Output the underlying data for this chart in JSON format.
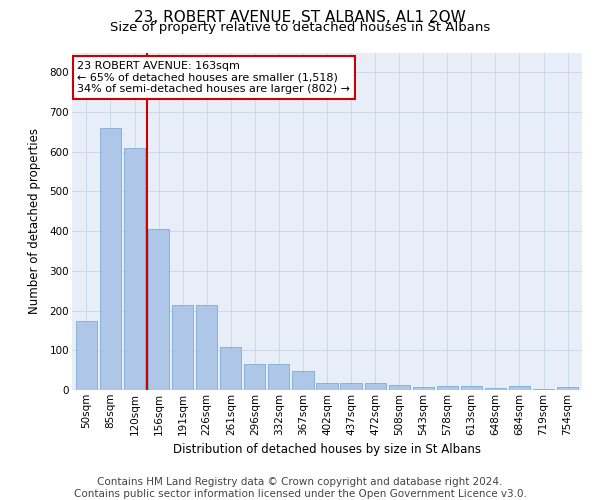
{
  "title": "23, ROBERT AVENUE, ST ALBANS, AL1 2QW",
  "subtitle": "Size of property relative to detached houses in St Albans",
  "xlabel": "Distribution of detached houses by size in St Albans",
  "ylabel": "Number of detached properties",
  "categories": [
    "50sqm",
    "85sqm",
    "120sqm",
    "156sqm",
    "191sqm",
    "226sqm",
    "261sqm",
    "296sqm",
    "332sqm",
    "367sqm",
    "402sqm",
    "437sqm",
    "472sqm",
    "508sqm",
    "543sqm",
    "578sqm",
    "613sqm",
    "648sqm",
    "684sqm",
    "719sqm",
    "754sqm"
  ],
  "values": [
    175,
    660,
    610,
    405,
    215,
    215,
    108,
    65,
    65,
    48,
    18,
    17,
    17,
    12,
    8,
    9,
    9,
    4,
    9,
    2,
    7
  ],
  "bar_color": "#aec6e8",
  "bar_edge_color": "#7aadd4",
  "vline_color": "#cc0000",
  "vline_x_index": 2.5,
  "annotation_text": "23 ROBERT AVENUE: 163sqm\n← 65% of detached houses are smaller (1,518)\n34% of semi-detached houses are larger (802) →",
  "annotation_box_facecolor": "#ffffff",
  "annotation_box_edgecolor": "#cc0000",
  "ylim": [
    0,
    850
  ],
  "yticks": [
    0,
    100,
    200,
    300,
    400,
    500,
    600,
    700,
    800
  ],
  "grid_color": "#c8d4e8",
  "background_color": "#e8eef8",
  "footer_line1": "Contains HM Land Registry data © Crown copyright and database right 2024.",
  "footer_line2": "Contains public sector information licensed under the Open Government Licence v3.0.",
  "title_fontsize": 11,
  "subtitle_fontsize": 9.5,
  "axis_label_fontsize": 8.5,
  "tick_fontsize": 7.5,
  "footer_fontsize": 7.5,
  "annotation_fontsize": 8
}
